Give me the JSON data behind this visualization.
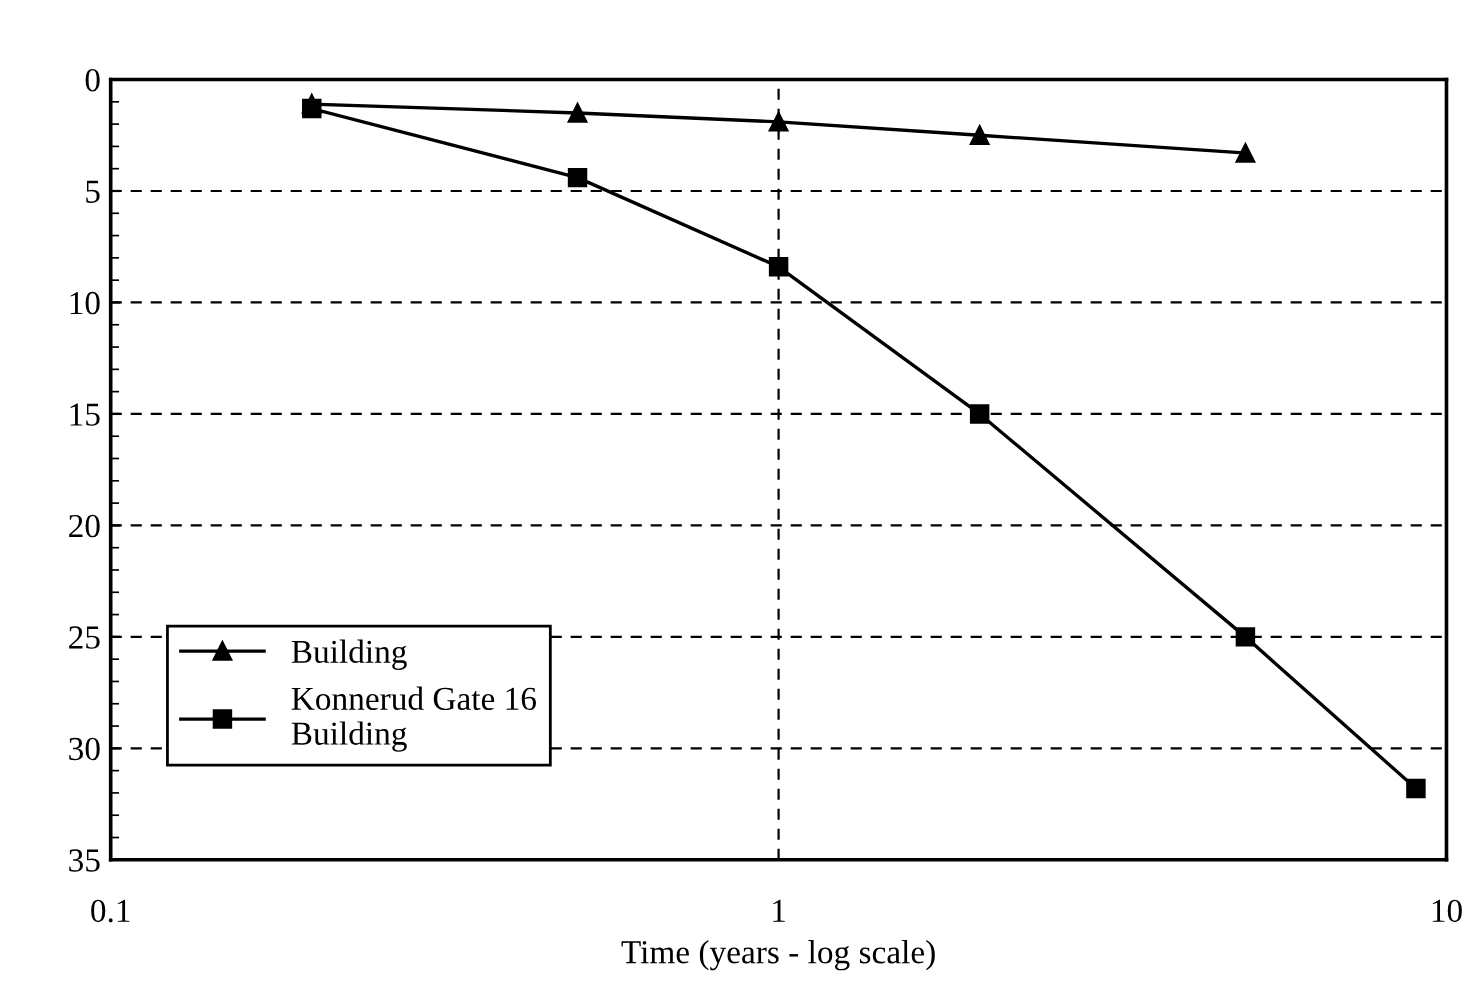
{
  "chart_data": {
    "type": "line",
    "xlabel": "Time (years - log scale)",
    "log": "x",
    "xlim": [
      0.1,
      10
    ],
    "xticks": [
      0.1,
      1,
      10
    ],
    "ylim": [
      35,
      0
    ],
    "yticks": [
      0,
      5,
      10,
      15,
      20,
      25,
      30,
      35
    ],
    "grid": true,
    "legend": "bottom left",
    "line_style": "solid",
    "series": [
      {
        "name": "Building",
        "color": "#000000",
        "marker": "triangle",
        "x": [
          0.2,
          0.5,
          1,
          2,
          5
        ],
        "values": [
          1.1,
          1.5,
          1.9,
          2.5,
          3.3
        ]
      },
      {
        "name": "Konnerud Gate 16\nBuilding",
        "color": "#000000",
        "marker": "square",
        "x": [
          0.2,
          0.5,
          1,
          2,
          5,
          9
        ],
        "values": [
          1.3,
          4.4,
          8.4,
          15,
          25,
          31.8
        ]
      }
    ]
  }
}
